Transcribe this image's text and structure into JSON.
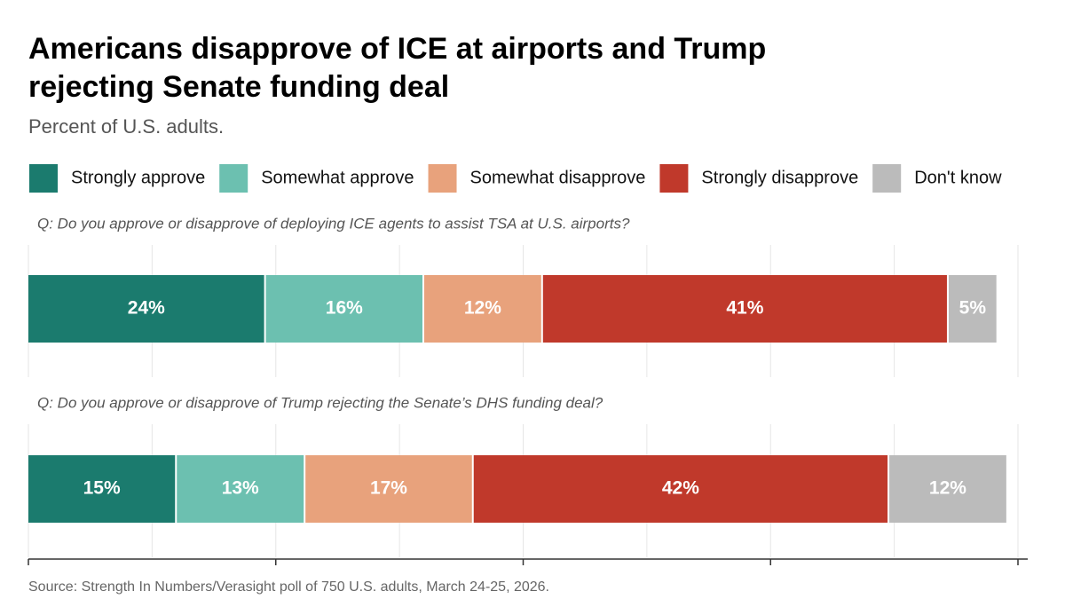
{
  "chart_data": {
    "type": "stacked-bar",
    "title": "Americans disapprove of ICE at airports and Trump rejecting Senate funding deal",
    "subtitle": "Percent of U.S. adults.",
    "source": "Source: Strength In Numbers/Verasight poll of 750 U.S. adults, March 24-25, 2026.",
    "categories": [
      "Q: Do you approve or disapprove of deploying ICE agents to assist TSA at U.S. airports?",
      "Q: Do you approve or disapprove of Trump rejecting the Senate’s DHS funding deal?"
    ],
    "series": [
      {
        "name": "Strongly approve",
        "color": "#1b7b6e",
        "values": [
          24,
          15
        ],
        "value_labels": [
          "24%",
          "15%"
        ]
      },
      {
        "name": "Somewhat approve",
        "color": "#6cc0b0",
        "values": [
          16,
          13
        ],
        "value_labels": [
          "16%",
          "13%"
        ]
      },
      {
        "name": "Somewhat disapprove",
        "color": "#e8a27c",
        "values": [
          12,
          17
        ],
        "value_labels": [
          "12%",
          "17%"
        ]
      },
      {
        "name": "Strongly disapprove",
        "color": "#c0392b",
        "values": [
          41,
          42
        ],
        "value_labels": [
          "41%",
          "42%"
        ]
      },
      {
        "name": "Don't know",
        "color": "#bbbbbb",
        "values": [
          5,
          12
        ],
        "value_labels": [
          "5%",
          "12%"
        ]
      }
    ],
    "xlim": [
      0,
      100
    ],
    "xticks": [
      0,
      25,
      50,
      75,
      100
    ],
    "grid": true
  }
}
